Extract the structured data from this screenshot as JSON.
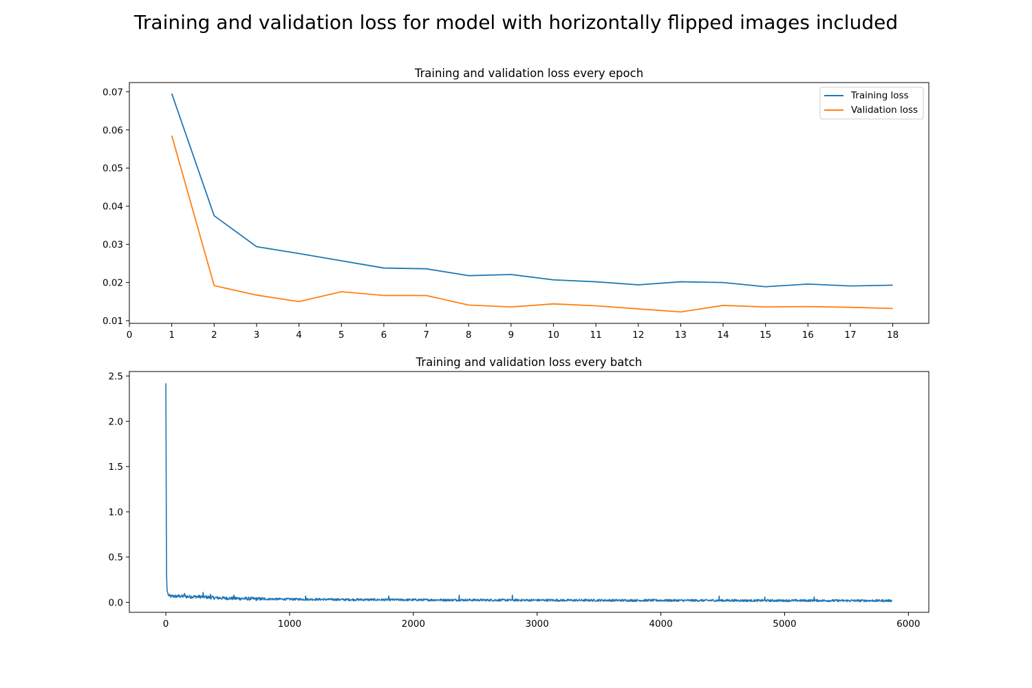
{
  "figure": {
    "suptitle": "Training and validation loss for model with horizontally flipped images included"
  },
  "colors": {
    "training": "#1f77b4",
    "validation": "#ff7f0e"
  },
  "chart_data": [
    {
      "type": "line",
      "title": "Training and validation loss every epoch",
      "xlabel": "",
      "ylabel": "",
      "xlim": [
        0,
        18.85
      ],
      "ylim": [
        0.0093,
        0.0724
      ],
      "xticks": [
        0,
        1,
        2,
        3,
        4,
        5,
        6,
        7,
        8,
        9,
        10,
        11,
        12,
        13,
        14,
        15,
        16,
        17,
        18
      ],
      "xtick_labels": [
        "0",
        "1",
        "2",
        "3",
        "4",
        "5",
        "6",
        "7",
        "8",
        "9",
        "10",
        "11",
        "12",
        "13",
        "14",
        "15",
        "16",
        "17",
        "18"
      ],
      "yticks": [
        0.01,
        0.02,
        0.03,
        0.04,
        0.05,
        0.06,
        0.07
      ],
      "ytick_labels": [
        "0.01",
        "0.02",
        "0.03",
        "0.04",
        "0.05",
        "0.06",
        "0.07"
      ],
      "grid": false,
      "legend": "upper right",
      "x": [
        1,
        2,
        3,
        4,
        5,
        6,
        7,
        8,
        9,
        10,
        11,
        12,
        13,
        14,
        15,
        16,
        17,
        18
      ],
      "series": [
        {
          "name": "Training loss",
          "color": "#1f77b4",
          "values": [
            0.0695,
            0.0375,
            0.0294,
            0.0276,
            0.0257,
            0.0238,
            0.0236,
            0.0218,
            0.0221,
            0.0207,
            0.0202,
            0.0194,
            0.0202,
            0.02,
            0.0189,
            0.0196,
            0.0191,
            0.0193
          ]
        },
        {
          "name": "Validation loss",
          "color": "#ff7f0e",
          "values": [
            0.0585,
            0.0192,
            0.0167,
            0.015,
            0.0176,
            0.0166,
            0.0166,
            0.0141,
            0.0136,
            0.0144,
            0.0139,
            0.0131,
            0.0123,
            0.014,
            0.0136,
            0.0137,
            0.0135,
            0.0132
          ]
        }
      ]
    },
    {
      "type": "line",
      "title": "Training and validation loss every batch",
      "xlabel": "",
      "ylabel": "",
      "xlim": [
        -295,
        6165
      ],
      "ylim": [
        -0.11,
        2.55
      ],
      "xticks": [
        0,
        1000,
        2000,
        3000,
        4000,
        5000,
        6000
      ],
      "xtick_labels": [
        "0",
        "1000",
        "2000",
        "3000",
        "4000",
        "5000",
        "6000"
      ],
      "yticks": [
        0.0,
        0.5,
        1.0,
        1.5,
        2.0,
        2.5
      ],
      "ytick_labels": [
        "0.0",
        "0.5",
        "1.0",
        "1.5",
        "2.0",
        "2.5"
      ],
      "grid": false,
      "legend": "none",
      "series": [
        {
          "color": "#1f77b4",
          "x": [
            0,
            2,
            4,
            6,
            10,
            20,
            40,
            60,
            80,
            100,
            150,
            200,
            250,
            300,
            350,
            400,
            500,
            600,
            700,
            800,
            900,
            1000,
            1100,
            1200,
            1300,
            1400,
            1500,
            1600,
            1700,
            1800,
            1900,
            2000,
            2100,
            2200,
            2300,
            2400,
            2500,
            2600,
            2700,
            2800,
            2900,
            3000,
            3100,
            3200,
            3300,
            3400,
            3500,
            3600,
            3700,
            3800,
            3900,
            4000,
            4100,
            4200,
            4300,
            4400,
            4500,
            4600,
            4700,
            4800,
            4900,
            5000,
            5100,
            5200,
            5300,
            5400,
            5500,
            5600,
            5700,
            5800,
            5870
          ],
          "values": [
            2.42,
            1.7,
            0.8,
            0.3,
            0.13,
            0.08,
            0.065,
            0.07,
            0.065,
            0.068,
            0.066,
            0.062,
            0.063,
            0.061,
            0.055,
            0.05,
            0.046,
            0.042,
            0.04,
            0.037,
            0.036,
            0.035,
            0.034,
            0.033,
            0.032,
            0.031,
            0.03,
            0.03,
            0.029,
            0.029,
            0.028,
            0.028,
            0.027,
            0.027,
            0.026,
            0.026,
            0.026,
            0.025,
            0.025,
            0.025,
            0.024,
            0.024,
            0.024,
            0.023,
            0.023,
            0.023,
            0.023,
            0.022,
            0.022,
            0.022,
            0.022,
            0.022,
            0.021,
            0.021,
            0.021,
            0.021,
            0.021,
            0.021,
            0.02,
            0.02,
            0.02,
            0.02,
            0.02,
            0.02,
            0.02,
            0.019,
            0.019,
            0.019,
            0.019,
            0.019,
            0.019
          ],
          "noise_amplitude": 0.012,
          "spikes": [
            {
              "x": 150,
              "y": 0.1
            },
            {
              "x": 300,
              "y": 0.11
            },
            {
              "x": 360,
              "y": 0.09
            },
            {
              "x": 550,
              "y": 0.08
            },
            {
              "x": 1130,
              "y": 0.07
            },
            {
              "x": 1800,
              "y": 0.07
            },
            {
              "x": 2370,
              "y": 0.08
            },
            {
              "x": 2800,
              "y": 0.08
            },
            {
              "x": 4470,
              "y": 0.07
            },
            {
              "x": 4840,
              "y": 0.06
            },
            {
              "x": 5240,
              "y": 0.06
            }
          ]
        }
      ]
    }
  ]
}
